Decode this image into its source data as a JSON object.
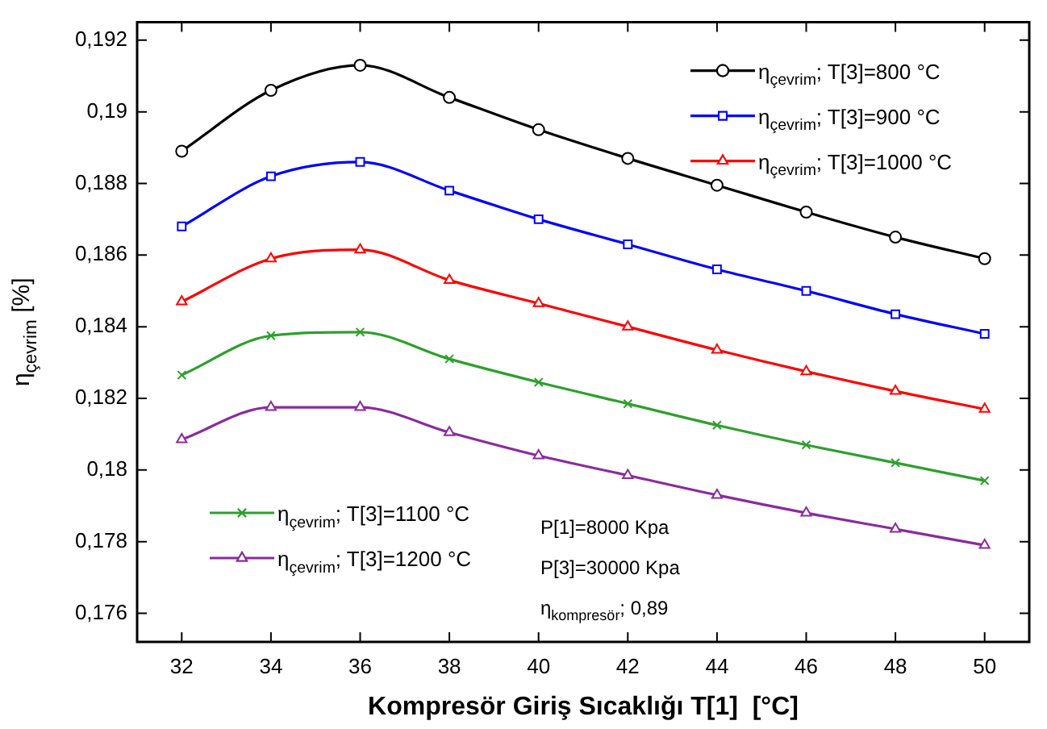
{
  "chart_data": {
    "type": "line",
    "xlabel": "Kompresör Giriş Sıcaklığı T[1]  [°C]",
    "ylabel": "η$_{çevrim}$ [%]",
    "x": [
      32,
      34,
      36,
      38,
      40,
      42,
      44,
      46,
      48,
      50
    ],
    "series": [
      {
        "name": "η$_{çevrim}$; T[3]=800 °C",
        "color": "#000000",
        "marker": "circle",
        "values": [
          0.1889,
          0.1906,
          0.1913,
          0.1904,
          0.1895,
          0.1887,
          0.18795,
          0.1872,
          0.1865,
          0.1859
        ]
      },
      {
        "name": "η$_{çevrim}$; T[3]=900 °C",
        "color": "#0000ff",
        "marker": "square",
        "values": [
          0.1868,
          0.1882,
          0.1886,
          0.1878,
          0.187,
          0.1863,
          0.1856,
          0.185,
          0.18435,
          0.1838
        ]
      },
      {
        "name": "η$_{çevrim}$; T[3]=1000 °C",
        "color": "#ff0000",
        "marker": "triangle",
        "values": [
          0.1847,
          0.1859,
          0.18615,
          0.1853,
          0.18465,
          0.184,
          0.18335,
          0.18275,
          0.1822,
          0.1817
        ]
      },
      {
        "name": "η$_{çevrim}$; T[3]=1100 °C",
        "color": "#2ca02c",
        "marker": "cross",
        "values": [
          0.18265,
          0.18375,
          0.18385,
          0.1831,
          0.18245,
          0.18185,
          0.18125,
          0.1807,
          0.1802,
          0.1797
        ]
      },
      {
        "name": "η$_{çevrim}$; T[3]=1200 °C",
        "color": "#8b2a9e",
        "marker": "triangle",
        "values": [
          0.18085,
          0.18175,
          0.18175,
          0.18105,
          0.1804,
          0.17985,
          0.1793,
          0.1788,
          0.17835,
          0.1779
        ]
      }
    ],
    "xlim": [
      31,
      51
    ],
    "xticks": [
      32,
      34,
      36,
      38,
      40,
      42,
      44,
      46,
      48,
      50
    ],
    "ylim": [
      0.1752,
      0.1925
    ],
    "yticks": [
      {
        "value": 0.176,
        "label": "0,176"
      },
      {
        "value": 0.178,
        "label": "0,178"
      },
      {
        "value": 0.18,
        "label": "0,18"
      },
      {
        "value": 0.182,
        "label": "0,182"
      },
      {
        "value": 0.184,
        "label": "0,184"
      },
      {
        "value": 0.186,
        "label": "0,186"
      },
      {
        "value": 0.188,
        "label": "0,188"
      },
      {
        "value": 0.19,
        "label": "0,19"
      },
      {
        "value": 0.192,
        "label": "0,192"
      }
    ],
    "grid": false,
    "legend": "top right",
    "line_style": "solid",
    "annotations": [
      "P[1]=8000 Kpa",
      "P[3]=30000 Kpa",
      "η$_{kompresör}$; 0,89"
    ]
  }
}
